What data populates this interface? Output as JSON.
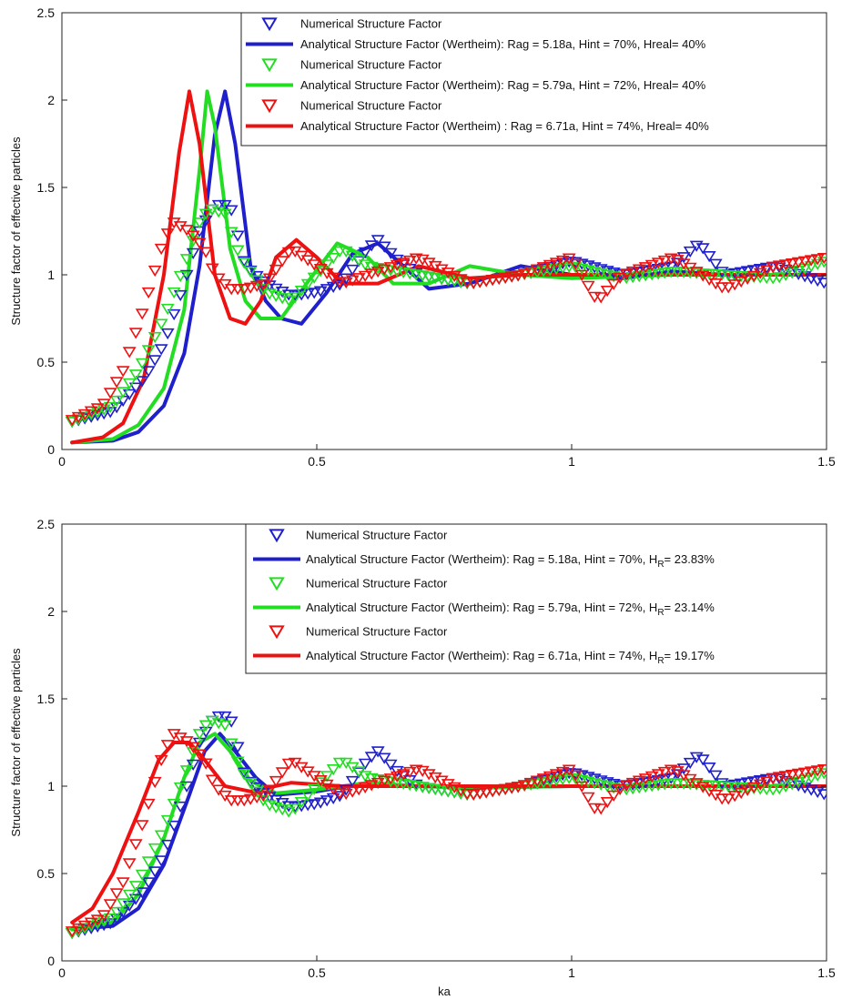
{
  "chart_data": [
    {
      "type": "line",
      "title": "",
      "xlabel": "",
      "ylabel": "Structure factor of effective particles",
      "xlim": [
        0,
        1.5
      ],
      "ylim": [
        0,
        2.5
      ],
      "xticks": [
        0,
        0.5,
        1,
        1.5
      ],
      "xtick_labels": [
        "0",
        "0.5",
        "1",
        "1.5"
      ],
      "yticks": [
        0,
        0.5,
        1,
        1.5,
        2,
        2.5
      ],
      "ytick_labels": [
        "0",
        "0.5",
        "1",
        "1.5",
        "2",
        "2.5"
      ],
      "grid": false,
      "legend_position": "top-right",
      "colors": {
        "blue": "#1f1fcc",
        "green": "#22dd22",
        "red": "#ee1111"
      },
      "series": [
        {
          "name": "Numerical Structure Factor",
          "kind": "markers",
          "marker": "triangle-down",
          "color": "#1f1fcc",
          "x": [
            0.02,
            0.1,
            0.16,
            0.2,
            0.24,
            0.27,
            0.3,
            0.33,
            0.36,
            0.4,
            0.45,
            0.5,
            0.55,
            0.6,
            0.62,
            0.66,
            0.7,
            0.8,
            0.9,
            1.0,
            1.1,
            1.2,
            1.25,
            1.3,
            1.4,
            1.5
          ],
          "y": [
            0.16,
            0.22,
            0.4,
            0.6,
            0.95,
            1.25,
            1.4,
            1.4,
            1.05,
            0.95,
            0.88,
            0.9,
            0.95,
            1.15,
            1.2,
            1.08,
            1.0,
            0.95,
            1.0,
            1.08,
            1.0,
            1.05,
            1.18,
            1.0,
            1.05,
            0.95
          ]
        },
        {
          "name": "Analytical Structure Factor (Wertheim): Rag = 5.18a, Hint = 70%, Hreal= 40%",
          "kind": "line",
          "color": "#1f1fcc",
          "x": [
            0.02,
            0.1,
            0.15,
            0.2,
            0.24,
            0.27,
            0.3,
            0.32,
            0.34,
            0.37,
            0.4,
            0.43,
            0.47,
            0.52,
            0.57,
            0.62,
            0.67,
            0.72,
            0.8,
            0.9,
            1.0,
            1.1,
            1.2,
            1.3,
            1.5
          ],
          "y": [
            0.04,
            0.05,
            0.1,
            0.25,
            0.55,
            1.05,
            1.8,
            2.05,
            1.75,
            1.05,
            0.85,
            0.75,
            0.72,
            0.9,
            1.12,
            1.18,
            1.05,
            0.92,
            0.95,
            1.05,
            1.0,
            0.98,
            1.02,
            1.0,
            1.0
          ]
        },
        {
          "name": "Numerical Structure Factor",
          "kind": "markers",
          "marker": "triangle-down",
          "color": "#22dd22",
          "x": [
            0.02,
            0.1,
            0.15,
            0.2,
            0.24,
            0.27,
            0.29,
            0.32,
            0.35,
            0.4,
            0.45,
            0.5,
            0.55,
            0.6,
            0.7,
            0.8,
            0.9,
            1.0,
            1.1,
            1.2,
            1.3,
            1.4,
            1.5
          ],
          "y": [
            0.16,
            0.25,
            0.45,
            0.75,
            1.05,
            1.3,
            1.38,
            1.35,
            1.1,
            0.9,
            0.85,
            1.0,
            1.15,
            1.05,
            1.0,
            0.95,
            1.0,
            1.05,
            0.98,
            1.02,
            1.0,
            0.98,
            1.08
          ]
        },
        {
          "name": "Analytical Structure Factor (Wertheim): Rag = 5.79a, Hint = 72%, Hreal= 40%",
          "kind": "line",
          "color": "#22dd22",
          "x": [
            0.02,
            0.1,
            0.15,
            0.2,
            0.24,
            0.27,
            0.285,
            0.3,
            0.33,
            0.36,
            0.39,
            0.43,
            0.48,
            0.54,
            0.6,
            0.65,
            0.72,
            0.8,
            0.9,
            1.0,
            1.2,
            1.5
          ],
          "y": [
            0.04,
            0.06,
            0.14,
            0.35,
            0.8,
            1.6,
            2.05,
            1.85,
            1.15,
            0.85,
            0.75,
            0.75,
            0.95,
            1.18,
            1.1,
            0.95,
            0.95,
            1.05,
            1.0,
            0.98,
            1.0,
            1.0
          ]
        },
        {
          "name": "Numerical Structure Factor",
          "kind": "markers",
          "marker": "triangle-down",
          "color": "#ee1111",
          "x": [
            0.02,
            0.08,
            0.12,
            0.16,
            0.2,
            0.22,
            0.25,
            0.28,
            0.3,
            0.33,
            0.36,
            0.4,
            0.45,
            0.5,
            0.55,
            0.6,
            0.7,
            0.8,
            0.9,
            1.0,
            1.05,
            1.1,
            1.2,
            1.3,
            1.4,
            1.5
          ],
          "y": [
            0.17,
            0.25,
            0.45,
            0.8,
            1.2,
            1.3,
            1.25,
            1.15,
            1.0,
            0.92,
            0.92,
            0.95,
            1.15,
            1.05,
            0.95,
            1.0,
            1.1,
            0.95,
            1.0,
            1.1,
            0.85,
            1.0,
            1.1,
            0.92,
            1.05,
            1.1
          ]
        },
        {
          "name": "Analytical Structure Factor (Wertheim) : Rag = 6.71a, Hint = 74%, Hreal= 40%",
          "kind": "line",
          "color": "#ee1111",
          "x": [
            0.02,
            0.08,
            0.12,
            0.16,
            0.2,
            0.23,
            0.25,
            0.27,
            0.3,
            0.33,
            0.36,
            0.39,
            0.42,
            0.46,
            0.5,
            0.55,
            0.62,
            0.7,
            0.8,
            0.9,
            1.0,
            1.2,
            1.5
          ],
          "y": [
            0.04,
            0.07,
            0.15,
            0.4,
            1.0,
            1.7,
            2.05,
            1.75,
            1.0,
            0.75,
            0.72,
            0.85,
            1.1,
            1.2,
            1.1,
            0.95,
            0.95,
            1.05,
            0.98,
            1.0,
            1.0,
            1.0,
            1.0
          ]
        }
      ]
    },
    {
      "type": "line",
      "title": "",
      "xlabel": "ka",
      "ylabel": "Structure factor of effective particles",
      "xlim": [
        0,
        1.5
      ],
      "ylim": [
        0,
        2.5
      ],
      "xticks": [
        0,
        0.5,
        1,
        1.5
      ],
      "xtick_labels": [
        "0",
        "0.5",
        "1",
        "1.5"
      ],
      "yticks": [
        0,
        0.5,
        1,
        1.5,
        2,
        2.5
      ],
      "ytick_labels": [
        "0",
        "0.5",
        "1",
        "1.5",
        "2",
        "2.5"
      ],
      "grid": false,
      "legend_position": "top-right",
      "colors": {
        "blue": "#1f1fcc",
        "green": "#22dd22",
        "red": "#ee1111"
      },
      "series": [
        {
          "name": "Numerical Structure Factor",
          "kind": "markers",
          "marker": "triangle-down",
          "color": "#1f1fcc",
          "x": [
            0.02,
            0.1,
            0.16,
            0.2,
            0.24,
            0.27,
            0.3,
            0.33,
            0.36,
            0.4,
            0.45,
            0.5,
            0.55,
            0.6,
            0.62,
            0.66,
            0.7,
            0.8,
            0.9,
            1.0,
            1.1,
            1.2,
            1.25,
            1.3,
            1.4,
            1.5
          ],
          "y": [
            0.16,
            0.22,
            0.4,
            0.6,
            0.95,
            1.25,
            1.4,
            1.4,
            1.05,
            0.95,
            0.88,
            0.9,
            0.95,
            1.15,
            1.2,
            1.08,
            1.0,
            0.95,
            1.0,
            1.08,
            1.0,
            1.05,
            1.18,
            1.0,
            1.05,
            0.95
          ]
        },
        {
          "name": "Analytical Structure Factor (Wertheim): Rag = 5.18a, Hint = 70%, H_R= 23.83%",
          "kind": "line",
          "color": "#1f1fcc",
          "x": [
            0.02,
            0.1,
            0.15,
            0.2,
            0.25,
            0.28,
            0.31,
            0.34,
            0.38,
            0.42,
            0.5,
            0.6,
            0.7,
            0.8,
            1.0,
            1.2,
            1.5
          ],
          "y": [
            0.18,
            0.2,
            0.3,
            0.55,
            0.95,
            1.2,
            1.3,
            1.2,
            1.05,
            0.95,
            0.97,
            1.02,
            1.0,
            0.99,
            1.0,
            1.0,
            1.0
          ]
        },
        {
          "name": "Numerical Structure Factor",
          "kind": "markers",
          "marker": "triangle-down",
          "color": "#22dd22",
          "x": [
            0.02,
            0.1,
            0.15,
            0.2,
            0.24,
            0.27,
            0.29,
            0.32,
            0.35,
            0.4,
            0.45,
            0.5,
            0.55,
            0.6,
            0.7,
            0.8,
            0.9,
            1.0,
            1.1,
            1.2,
            1.3,
            1.4,
            1.5
          ],
          "y": [
            0.16,
            0.25,
            0.45,
            0.75,
            1.05,
            1.3,
            1.38,
            1.35,
            1.1,
            0.9,
            0.85,
            1.0,
            1.15,
            1.05,
            1.0,
            0.95,
            1.0,
            1.05,
            0.98,
            1.02,
            1.0,
            0.98,
            1.08
          ]
        },
        {
          "name": "Analytical Structure Factor (Wertheim): Rag = 5.79a, Hint = 72%, H_R= 23.14%",
          "kind": "line",
          "color": "#22dd22",
          "x": [
            0.02,
            0.1,
            0.15,
            0.2,
            0.24,
            0.27,
            0.3,
            0.33,
            0.37,
            0.42,
            0.5,
            0.6,
            0.7,
            0.8,
            1.0,
            1.2,
            1.5
          ],
          "y": [
            0.18,
            0.22,
            0.38,
            0.7,
            1.05,
            1.25,
            1.3,
            1.2,
            1.03,
            0.96,
            0.98,
            1.02,
            1.0,
            0.99,
            1.0,
            1.0,
            1.0
          ]
        },
        {
          "name": "Numerical Structure Factor",
          "kind": "markers",
          "marker": "triangle-down",
          "color": "#ee1111",
          "x": [
            0.02,
            0.08,
            0.12,
            0.16,
            0.2,
            0.22,
            0.25,
            0.28,
            0.3,
            0.33,
            0.36,
            0.4,
            0.45,
            0.5,
            0.55,
            0.6,
            0.7,
            0.8,
            0.9,
            1.0,
            1.05,
            1.1,
            1.2,
            1.3,
            1.4,
            1.5
          ],
          "y": [
            0.17,
            0.25,
            0.45,
            0.8,
            1.2,
            1.3,
            1.25,
            1.15,
            1.0,
            0.92,
            0.92,
            0.95,
            1.15,
            1.05,
            0.95,
            1.0,
            1.1,
            0.95,
            1.0,
            1.1,
            0.85,
            1.0,
            1.1,
            0.92,
            1.05,
            1.1
          ]
        },
        {
          "name": "Analytical Structure Factor (Wertheim): Rag = 6.71a, Hint = 74%, H_R= 19.17%",
          "kind": "line",
          "color": "#ee1111",
          "x": [
            0.02,
            0.06,
            0.1,
            0.15,
            0.19,
            0.22,
            0.25,
            0.28,
            0.32,
            0.37,
            0.45,
            0.55,
            0.7,
            0.85,
            1.0,
            1.2,
            1.5
          ],
          "y": [
            0.22,
            0.3,
            0.5,
            0.85,
            1.15,
            1.25,
            1.25,
            1.15,
            1.0,
            0.97,
            1.02,
            1.0,
            1.0,
            1.0,
            1.0,
            1.0,
            1.0
          ]
        }
      ]
    }
  ],
  "panels": [
    {
      "legend": [
        {
          "label": "Numerical Structure Factor",
          "kind": "marker",
          "color": "#1f1fcc"
        },
        {
          "label": "Analytical Structure Factor (Wertheim): Rag = 5.18a, Hint = 70%, Hreal= 40%",
          "kind": "line",
          "color": "#1f1fcc"
        },
        {
          "label": "Numerical Structure Factor",
          "kind": "marker",
          "color": "#22dd22"
        },
        {
          "label": "Analytical Structure Factor (Wertheim): Rag = 5.79a, Hint = 72%, Hreal= 40%",
          "kind": "line",
          "color": "#22dd22"
        },
        {
          "label": "Numerical Structure Factor",
          "kind": "marker",
          "color": "#ee1111"
        },
        {
          "label": "Analytical Structure Factor (Wertheim) : Rag = 6.71a, Hint = 74%, Hreal= 40%",
          "kind": "line",
          "color": "#ee1111"
        }
      ]
    },
    {
      "legend": [
        {
          "label": "Numerical Structure Factor",
          "kind": "marker",
          "color": "#1f1fcc"
        },
        {
          "label": "Analytical Structure Factor (Wertheim): Rag = 5.18a, Hint = 70%, ",
          "sub_main": "H",
          "sub_script": "R",
          "sub_tail": "= 23.83%",
          "kind": "line",
          "color": "#1f1fcc"
        },
        {
          "label": "Numerical Structure Factor",
          "kind": "marker",
          "color": "#22dd22"
        },
        {
          "label": "Analytical Structure Factor (Wertheim): Rag = 5.79a, Hint = 72%, ",
          "sub_main": "H",
          "sub_script": "R",
          "sub_tail": "= 23.14%",
          "kind": "line",
          "color": "#22dd22"
        },
        {
          "label": "Numerical Structure Factor",
          "kind": "marker",
          "color": "#ee1111"
        },
        {
          "label": "Analytical Structure Factor (Wertheim): Rag = 6.71a, Hint = 74%, ",
          "sub_main": "H",
          "sub_script": "R",
          "sub_tail": "= 19.17%",
          "kind": "line",
          "color": "#ee1111"
        }
      ]
    }
  ]
}
